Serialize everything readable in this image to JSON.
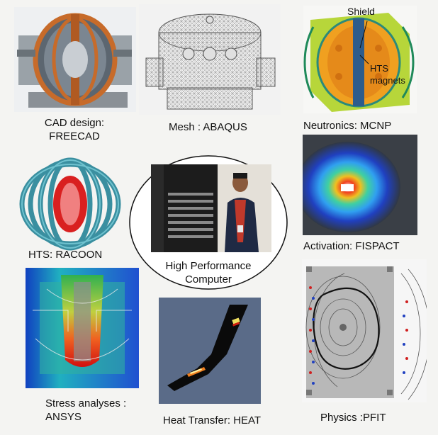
{
  "panels": {
    "cad": {
      "caption_line1": "CAD design:",
      "caption_line2": "FREECAD"
    },
    "mesh": {
      "caption": "Mesh : ABAQUS"
    },
    "neutronics": {
      "caption": "Neutronics: MCNP",
      "label_shield": "Shield",
      "label_hts_line1": "HTS",
      "label_hts_line2": "magnets"
    },
    "hts": {
      "caption": "HTS: RACOON"
    },
    "hpc": {
      "caption_line1": "High Performance",
      "caption_line2": "Computer"
    },
    "activation": {
      "caption": "Activation: FISPACT"
    },
    "stress": {
      "caption_line1": "Stress analyses :",
      "caption_line2": "ANSYS"
    },
    "heat": {
      "caption": "Heat Transfer: HEAT"
    },
    "physics": {
      "caption": "Physics :PFIT"
    }
  }
}
